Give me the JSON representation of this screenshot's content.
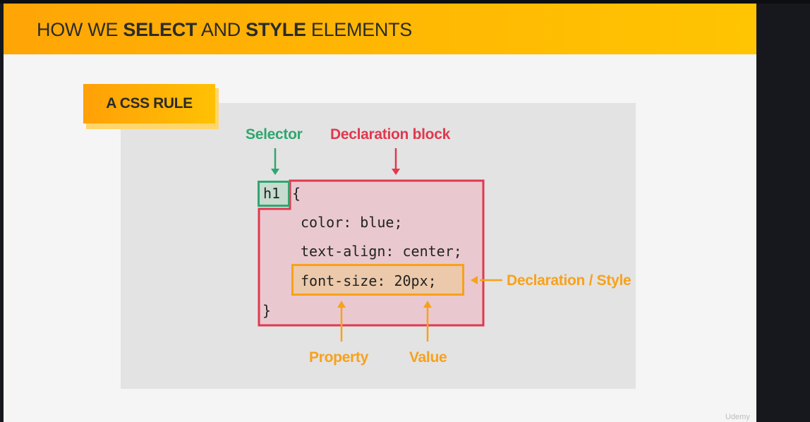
{
  "header": {
    "title_parts": [
      "HOW WE ",
      "SELECT",
      " AND ",
      "STYLE",
      " ELEMENTS"
    ]
  },
  "badge": {
    "label": "A CSS RULE"
  },
  "code": {
    "selector": "h1",
    "open_brace": "{",
    "lines": [
      "color: blue;",
      "text-align: center;",
      "font-size: 20px;"
    ],
    "close_brace": "}"
  },
  "labels": {
    "selector": "Selector",
    "declaration_block": "Declaration block",
    "declaration": "Declaration / Style",
    "property": "Property",
    "value": "Value"
  },
  "colors": {
    "accent": "#ffb703",
    "selector": "#30a66f",
    "declaration_block": "#e0384f",
    "declaration": "#f8a11a"
  },
  "watermark": "Udemy"
}
